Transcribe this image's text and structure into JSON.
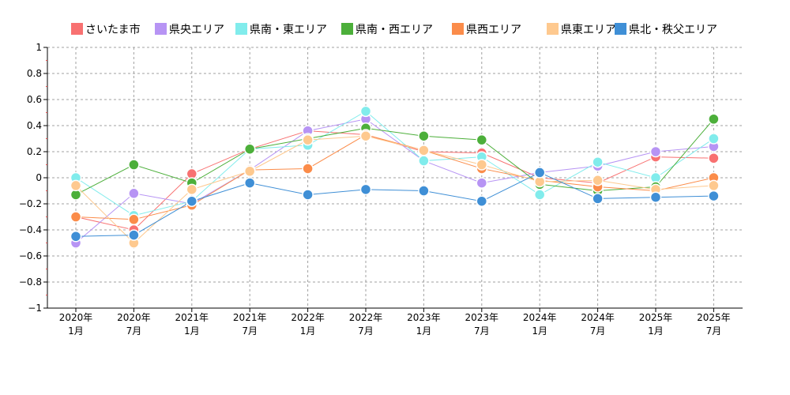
{
  "chart_data": {
    "type": "line",
    "title": "",
    "xlabel": "",
    "ylabel": "",
    "ylim": [
      -1,
      1
    ],
    "yticks": [
      1,
      0.8,
      0.6,
      0.4,
      0.2,
      0,
      -0.2,
      -0.4,
      -0.6,
      -0.8,
      -1
    ],
    "ytick_labels": [
      "1",
      "0.8",
      "0.6",
      "0.4",
      "0.2",
      "0",
      "−0.2",
      "−0.4",
      "−0.6",
      "−0.8",
      "−1"
    ],
    "grid": true,
    "legend_position": "top",
    "categories": [
      {
        "year": "2020年",
        "month": "1月"
      },
      {
        "year": "2020年",
        "month": "7月"
      },
      {
        "year": "2021年",
        "month": "1月"
      },
      {
        "year": "2021年",
        "month": "7月"
      },
      {
        "year": "2022年",
        "month": "1月"
      },
      {
        "year": "2022年",
        "month": "7月"
      },
      {
        "year": "2023年",
        "month": "1月"
      },
      {
        "year": "2023年",
        "month": "7月"
      },
      {
        "year": "2024年",
        "month": "1月"
      },
      {
        "year": "2024年",
        "month": "7月"
      },
      {
        "year": "2025年",
        "month": "1月"
      },
      {
        "year": "2025年",
        "month": "7月"
      }
    ],
    "series": [
      {
        "name": "さいたま市",
        "color": "#f87171",
        "values": [
          -0.3,
          -0.4,
          0.03,
          0.22,
          0.36,
          0.33,
          0.2,
          0.19,
          0.0,
          -0.04,
          0.16,
          0.15
        ]
      },
      {
        "name": "県央エリア",
        "color": "#b794f4",
        "values": [
          -0.5,
          -0.12,
          -0.2,
          0.06,
          0.36,
          0.45,
          0.13,
          -0.04,
          0.04,
          0.09,
          0.2,
          0.24
        ]
      },
      {
        "name": "県南・東エリア",
        "color": "#81ecec",
        "values": [
          0.0,
          -0.29,
          -0.18,
          0.22,
          0.25,
          0.51,
          0.13,
          0.16,
          -0.13,
          0.12,
          0.0,
          0.3
        ]
      },
      {
        "name": "県南・西エリア",
        "color": "#4caf3a",
        "values": [
          -0.13,
          0.1,
          -0.04,
          0.22,
          0.3,
          0.38,
          0.32,
          0.29,
          -0.05,
          -0.1,
          -0.07,
          0.45
        ]
      },
      {
        "name": "県西エリア",
        "color": "#fb8c4a",
        "values": [
          -0.3,
          -0.32,
          -0.21,
          0.06,
          0.07,
          0.33,
          0.21,
          0.07,
          -0.02,
          -0.07,
          -0.1,
          0.0
        ]
      },
      {
        "name": "県東エリア",
        "color": "#fec98f",
        "values": [
          -0.06,
          -0.5,
          -0.09,
          0.05,
          0.29,
          0.32,
          0.21,
          0.1,
          -0.03,
          -0.02,
          -0.09,
          -0.06
        ]
      },
      {
        "name": "県北・秩父エリア",
        "color": "#3f8fd6",
        "values": [
          -0.45,
          -0.44,
          -0.18,
          -0.04,
          -0.13,
          -0.09,
          -0.1,
          -0.18,
          0.04,
          -0.16,
          -0.15,
          -0.14
        ]
      }
    ]
  }
}
